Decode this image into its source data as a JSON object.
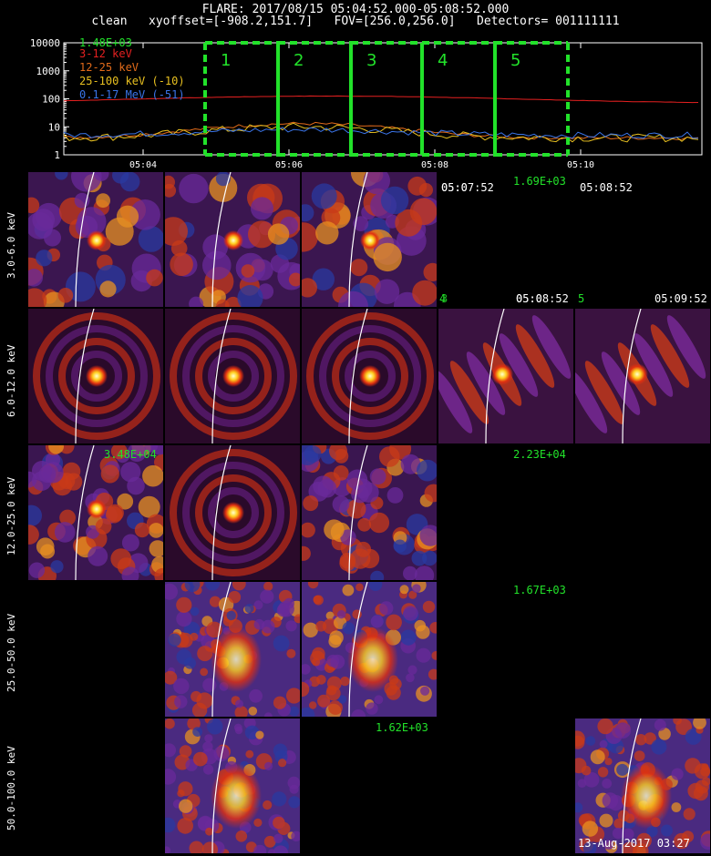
{
  "header": {
    "line1": "FLARE: 2017/08/15 05:04:52.000-05:08:52.000",
    "line2": "clean   xyoffset=[-908.2,151.7]   FOV=[256.0,256.0]   Detectors= 001111111"
  },
  "lightcurve": {
    "ymax_label": "1.48E+03",
    "y_ticks": [
      "10000",
      "1000",
      "100",
      "10",
      "1"
    ],
    "x_ticks": [
      "05:04",
      "05:06",
      "05:08",
      "05:10"
    ],
    "legend": [
      {
        "label": "3-12 keV",
        "color": "#e52020"
      },
      {
        "label": "12-25 keV",
        "color": "#e26b1a"
      },
      {
        "label": "25-100 keV (-10)",
        "color": "#e8c020"
      },
      {
        "label": "0.1-17 MeV (-51)",
        "color": "#3a74e8"
      }
    ],
    "intervals": [
      "1",
      "2",
      "3",
      "4",
      "5"
    ],
    "interval_color": "#22e22a"
  },
  "energy_bands": [
    "3.0-6.0 keV",
    "6.0-12.0 keV",
    "12.0-25.0 keV",
    "25.0-50.0 keV",
    "50.0-100.0 keV"
  ],
  "annotations": {
    "row1_time_a": "05:07:52",
    "row1_time_a_overlay": "05:0",
    "row1_max": "1.69E+03",
    "row1_time_b": "05:08:52",
    "row2_num_a": "4",
    "row2_num_a_overlay": "3",
    "row2_time_a": "05:08:52",
    "row2_time_a_overlay": "05:0",
    "row2_num_b": "5",
    "row2_time_b": "05:09:52",
    "row3_max_left": "3.48E+04",
    "row3_max_right": "2.23E+04",
    "row4_max": "1.67E+03",
    "row5_max": "1.62E+03",
    "footer_date": "13-Aug-2017 03:27"
  }
}
